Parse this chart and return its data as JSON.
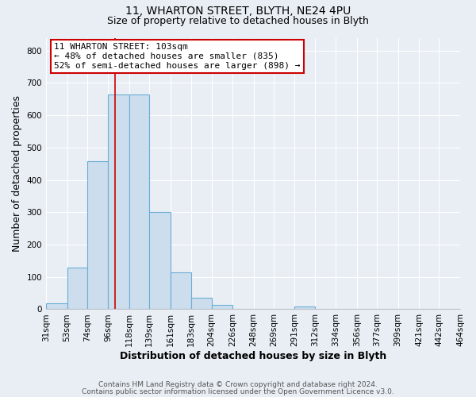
{
  "title_line1": "11, WHARTON STREET, BLYTH, NE24 4PU",
  "title_line2": "Size of property relative to detached houses in Blyth",
  "xlabel": "Distribution of detached houses by size in Blyth",
  "ylabel": "Number of detached properties",
  "bar_edges": [
    31,
    53,
    74,
    96,
    118,
    139,
    161,
    183,
    204,
    226,
    248,
    269,
    291,
    312,
    334,
    356,
    377,
    399,
    421,
    442,
    464
  ],
  "bar_heights": [
    18,
    128,
    457,
    665,
    665,
    300,
    115,
    35,
    13,
    0,
    0,
    0,
    8,
    0,
    0,
    0,
    0,
    0,
    0,
    0
  ],
  "bar_color": "#ccdded",
  "bar_edge_color": "#6baed6",
  "property_value": 103,
  "vline_color": "#cc0000",
  "annotation_line1": "11 WHARTON STREET: 103sqm",
  "annotation_line2": "← 48% of detached houses are smaller (835)",
  "annotation_line3": "52% of semi-detached houses are larger (898) →",
  "annotation_box_edge_color": "#cc0000",
  "annotation_box_face_color": "#ffffff",
  "ylim": [
    0,
    840
  ],
  "yticks": [
    0,
    100,
    200,
    300,
    400,
    500,
    600,
    700,
    800
  ],
  "tick_labels": [
    "31sqm",
    "53sqm",
    "74sqm",
    "96sqm",
    "118sqm",
    "139sqm",
    "161sqm",
    "183sqm",
    "204sqm",
    "226sqm",
    "248sqm",
    "269sqm",
    "291sqm",
    "312sqm",
    "334sqm",
    "356sqm",
    "377sqm",
    "399sqm",
    "421sqm",
    "442sqm",
    "464sqm"
  ],
  "footer_line1": "Contains HM Land Registry data © Crown copyright and database right 2024.",
  "footer_line2": "Contains public sector information licensed under the Open Government Licence v3.0.",
  "bg_color": "#e8eef4",
  "grid_color": "#ffffff",
  "title_fontsize": 10,
  "subtitle_fontsize": 9,
  "axis_label_fontsize": 9,
  "tick_fontsize": 7.5,
  "annotation_fontsize": 8,
  "footer_fontsize": 6.5
}
